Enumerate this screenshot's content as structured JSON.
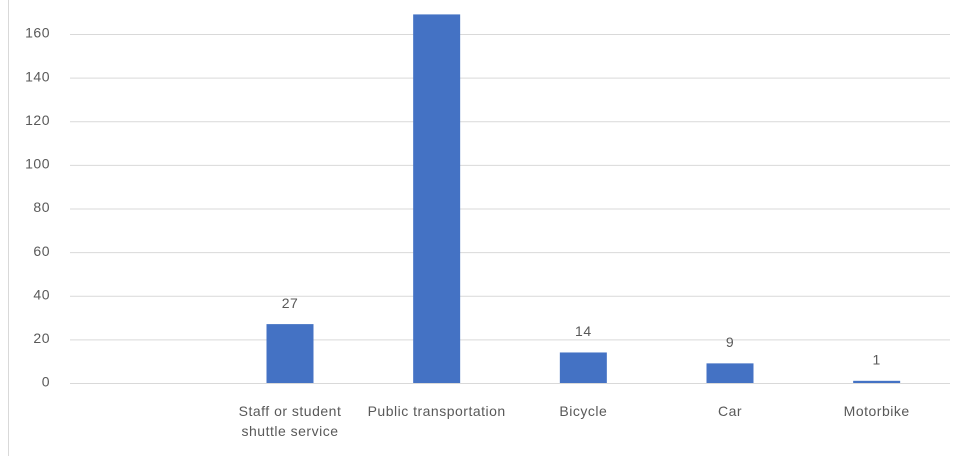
{
  "chart_data": {
    "type": "bar",
    "categories": [
      null,
      "Staff or student shuttle service",
      "Public transportation",
      "Bicycle",
      "Car",
      "Motorbike"
    ],
    "values": [
      null,
      27,
      169,
      14,
      9,
      1
    ],
    "color": "#4472c4",
    "ylim": [
      0,
      170
    ],
    "yticks": [
      0,
      20,
      40,
      60,
      80,
      100,
      120,
      140,
      160
    ],
    "grid": true
  }
}
